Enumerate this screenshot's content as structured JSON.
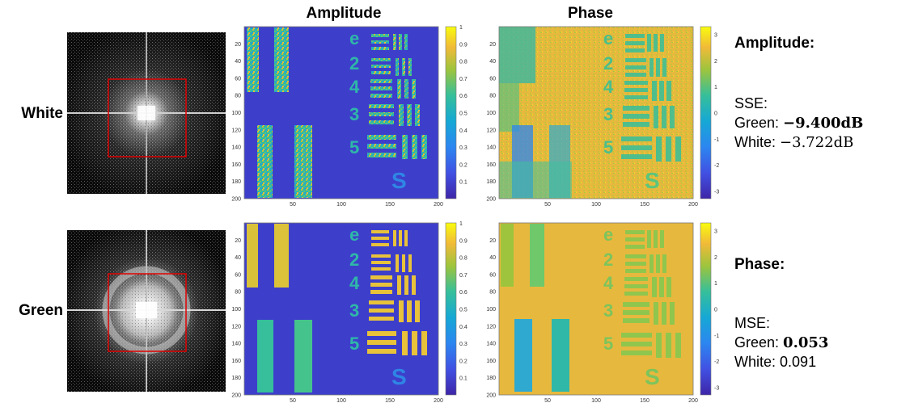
{
  "columns": {
    "amplitude": "Amplitude",
    "phase": "Phase"
  },
  "rows": [
    {
      "label": "White",
      "spectrum": "fourier-spectrum-white",
      "intensity": "low"
    },
    {
      "label": "Green",
      "spectrum": "fourier-spectrum-green",
      "intensity": "high"
    }
  ],
  "axes": {
    "y_ticks": [
      "20",
      "40",
      "60",
      "80",
      "100",
      "120",
      "140",
      "160",
      "180",
      "200"
    ],
    "x_ticks": [
      "50",
      "100",
      "150",
      "200"
    ]
  },
  "colorbars": {
    "amplitude_ticks": [
      "1",
      "0.9",
      "0.8",
      "0.7",
      "0.6",
      "0.5",
      "0.4",
      "0.3",
      "0.2",
      "0.1"
    ],
    "phase_ticks": [
      "3",
      "2",
      "1",
      "0",
      "-1",
      "-2",
      "-3"
    ]
  },
  "colors": {
    "parula_low": "#3e26a8",
    "parula_mid": "#2fb7a8",
    "parula_high": "#f9fb0e",
    "selection_box": "#e00000",
    "amplitude_background": "#3d3fcb",
    "phase_background": "#e7b83e"
  },
  "metrics": {
    "amplitude": {
      "heading": "Amplitude:",
      "measure": "SSE:",
      "green_label": "Green:",
      "green_value": "−9.400dB",
      "white_label": "White:",
      "white_value": "−3.722dB"
    },
    "phase": {
      "heading": "Phase:",
      "measure": "MSE:",
      "green_label": "Green:",
      "green_value": "0.053",
      "white_label": "White:",
      "white_value": "0.091"
    }
  }
}
